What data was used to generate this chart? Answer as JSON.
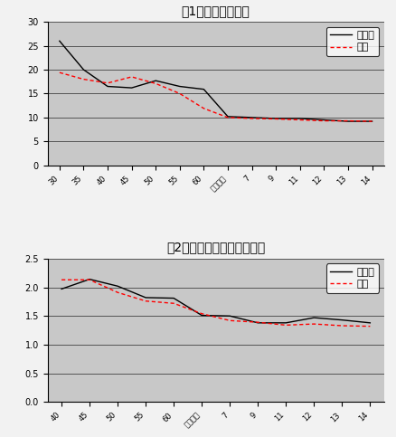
{
  "title1": "図1　出生率の推移",
  "title2": "図2　合計特殊出生率の推移",
  "chart1": {
    "x_labels": [
      "30",
      "35",
      "40",
      "45",
      "50",
      "55",
      "60",
      "平成２年",
      "7",
      "9",
      "11",
      "12",
      "13",
      "14"
    ],
    "x_positions": [
      0,
      1,
      2,
      3,
      4,
      5,
      6,
      7,
      8,
      9,
      10,
      11,
      12,
      13
    ],
    "mie": [
      26.0,
      20.0,
      16.5,
      16.2,
      17.7,
      16.5,
      15.9,
      10.2,
      10.0,
      9.8,
      9.8,
      9.5,
      9.2,
      9.2
    ],
    "zenkoku": [
      19.4,
      18.0,
      17.2,
      18.5,
      17.1,
      15.0,
      11.9,
      10.0,
      9.8,
      9.7,
      9.5,
      9.3,
      9.3,
      9.2
    ],
    "ylim": [
      0.0,
      30.0
    ],
    "yticks": [
      0.0,
      5.0,
      10.0,
      15.0,
      20.0,
      25.0,
      30.0
    ]
  },
  "chart2": {
    "x_labels": [
      "40",
      "45",
      "50",
      "55",
      "60",
      "平成２年",
      "7",
      "9",
      "11",
      "12",
      "13",
      "14"
    ],
    "x_positions": [
      0,
      1,
      2,
      3,
      4,
      5,
      6,
      7,
      8,
      9,
      10,
      11
    ],
    "mie": [
      1.97,
      2.14,
      2.02,
      1.82,
      1.81,
      1.51,
      1.5,
      1.38,
      1.38,
      1.47,
      1.43,
      1.38
    ],
    "zenkoku": [
      2.13,
      2.13,
      1.91,
      1.76,
      1.72,
      1.54,
      1.42,
      1.39,
      1.34,
      1.36,
      1.33,
      1.32
    ],
    "ylim": [
      0.0,
      2.5
    ],
    "yticks": [
      0.0,
      0.5,
      1.0,
      1.5,
      2.0,
      2.5
    ]
  },
  "bg_color": "#c8c8c8",
  "fig_bg_color": "#f2f2f2",
  "line_color_mie": "#000000",
  "line_color_zenkoku": "#ff0000",
  "legend_mie": "三重県",
  "legend_zenkoku": "全国",
  "title_fontsize": 10,
  "tick_fontsize": 7,
  "legend_fontsize": 8
}
